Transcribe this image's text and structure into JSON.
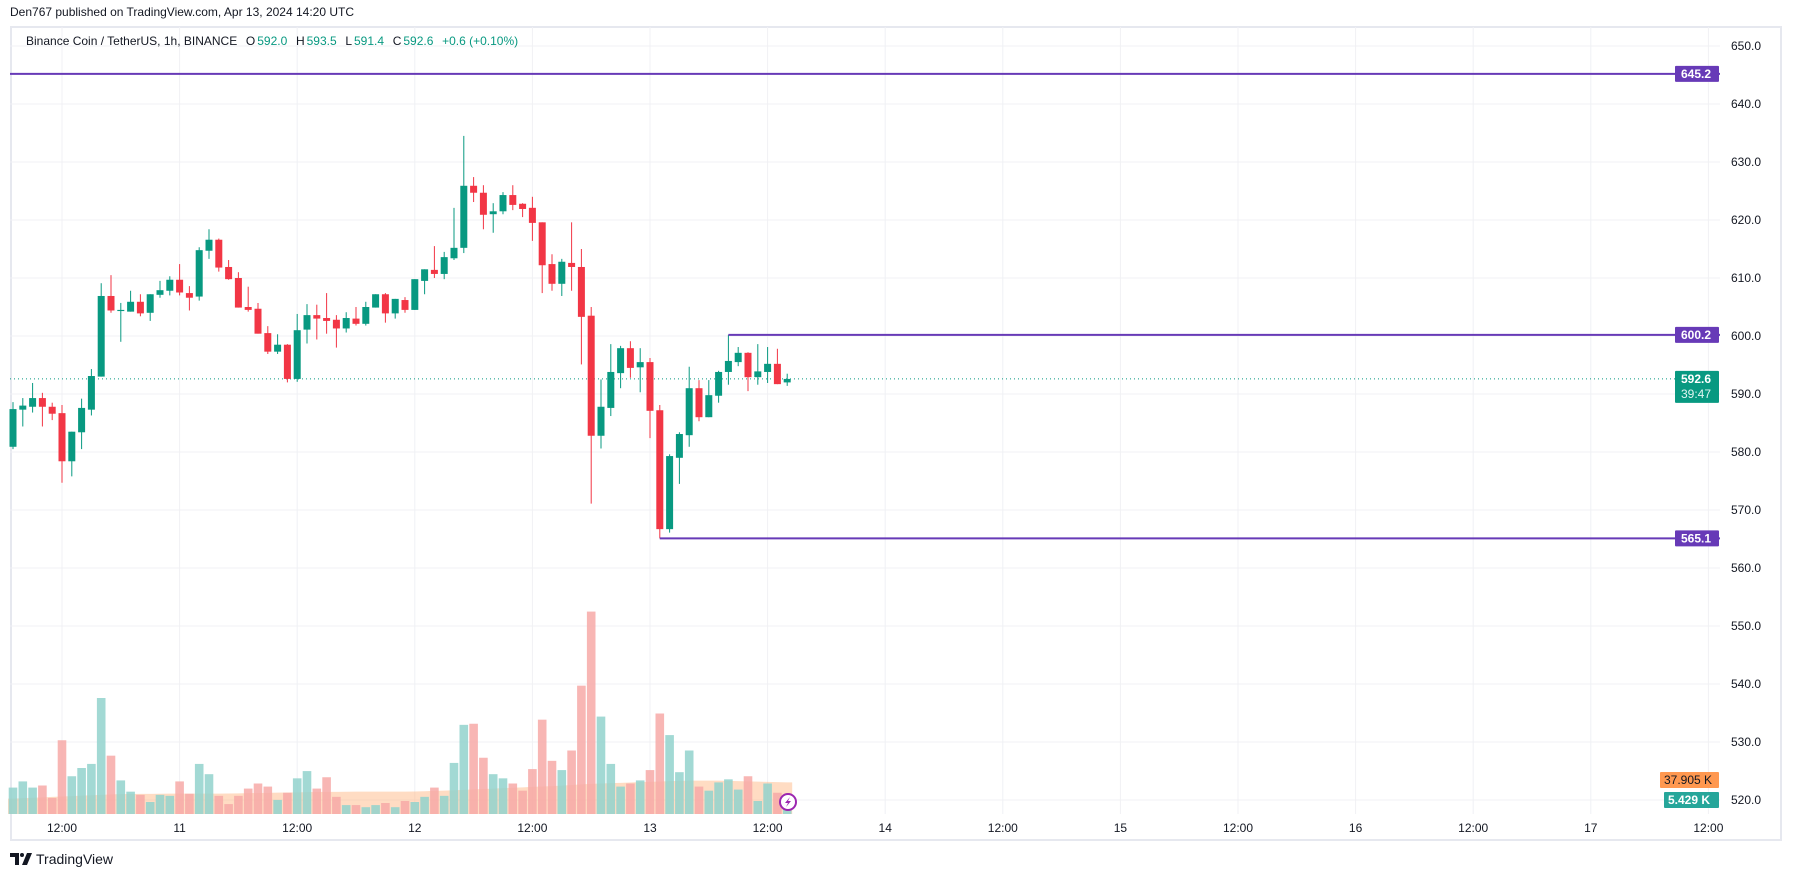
{
  "header": {
    "published": "Den767 published on TradingView.com, Apr 13, 2024 14:20 UTC"
  },
  "legend": {
    "symbol": "Binance Coin / TetherUS, 1h, BINANCE",
    "o_label": "O",
    "o": "592.0",
    "h_label": "H",
    "h": "593.5",
    "l_label": "L",
    "l": "591.4",
    "c_label": "C",
    "c": "592.6",
    "change": "+0.6 (+0.10%)"
  },
  "footer": {
    "brand": "TradingView"
  },
  "colors": {
    "up": "#089981",
    "down": "#F23645",
    "level": "#673AB7",
    "vol_ma": "#FF9850",
    "vol_up": "#92D2CC",
    "vol_down": "#F7A9A7"
  },
  "chart_data": {
    "type": "candlestick",
    "title": "Binance Coin / TetherUS, 1h, BINANCE",
    "first_candle_hour_offset": 7,
    "interval_hours": 1,
    "ylim": [
      518,
      652
    ],
    "price_ticks": [
      "650.0",
      "640.0",
      "630.0",
      "620.0",
      "610.0",
      "600.0",
      "590.0",
      "580.0",
      "570.0",
      "560.0",
      "550.0",
      "540.0",
      "530.0",
      "520.0"
    ],
    "time_ticks": [
      {
        "hour": 12,
        "label": "12:00"
      },
      {
        "hour": 24,
        "label": "11"
      },
      {
        "hour": 36,
        "label": "12:00"
      },
      {
        "hour": 48,
        "label": "12"
      },
      {
        "hour": 60,
        "label": "12:00"
      },
      {
        "hour": 72,
        "label": "13"
      },
      {
        "hour": 84,
        "label": "12:00"
      },
      {
        "hour": 96,
        "label": "14"
      },
      {
        "hour": 108,
        "label": "12:00"
      },
      {
        "hour": 120,
        "label": "15"
      },
      {
        "hour": 132,
        "label": "12:00"
      },
      {
        "hour": 144,
        "label": "16"
      },
      {
        "hour": 156,
        "label": "12:00"
      },
      {
        "hour": 168,
        "label": "17"
      },
      {
        "hour": 180,
        "label": "12:00"
      }
    ],
    "ohlc": [
      [
        580.9,
        588.6,
        580.5,
        587.4
      ],
      [
        587.3,
        589.3,
        584.4,
        588.0
      ],
      [
        587.8,
        591.9,
        586.8,
        589.3
      ],
      [
        589.3,
        590.2,
        584.4,
        587.8
      ],
      [
        587.8,
        588.5,
        585.5,
        586.6
      ],
      [
        586.7,
        588.1,
        574.7,
        578.4
      ],
      [
        578.4,
        583.5,
        575.8,
        583.5
      ],
      [
        583.4,
        589.2,
        580.5,
        587.6
      ],
      [
        587.3,
        594.3,
        586.3,
        593.1
      ],
      [
        593.0,
        609.1,
        593.0,
        606.9
      ],
      [
        606.9,
        610.5,
        604.0,
        604.4
      ],
      [
        604.3,
        605.7,
        599.0,
        604.5
      ],
      [
        604.2,
        607.8,
        604.2,
        605.9
      ],
      [
        605.9,
        607.2,
        603.4,
        603.9
      ],
      [
        604.0,
        607.2,
        602.6,
        607.2
      ],
      [
        607.1,
        609.5,
        606.6,
        607.9
      ],
      [
        607.8,
        610.3,
        607.0,
        609.7
      ],
      [
        609.7,
        612.4,
        607.0,
        607.5
      ],
      [
        607.4,
        608.6,
        604.4,
        606.6
      ],
      [
        606.8,
        615.3,
        606.1,
        614.8
      ],
      [
        614.7,
        618.4,
        613.3,
        616.6
      ],
      [
        616.6,
        616.8,
        611.1,
        611.8
      ],
      [
        611.9,
        613.1,
        609.7,
        609.8
      ],
      [
        610.0,
        611.0,
        604.9,
        604.9
      ],
      [
        605.0,
        608.5,
        604.2,
        604.5
      ],
      [
        604.7,
        605.7,
        600.4,
        600.4
      ],
      [
        600.5,
        601.7,
        596.9,
        597.3
      ],
      [
        597.3,
        600.3,
        596.9,
        598.5
      ],
      [
        598.5,
        598.6,
        592.0,
        592.6
      ],
      [
        592.6,
        603.8,
        592.1,
        601.0
      ],
      [
        601.1,
        605.5,
        598.7,
        603.6
      ],
      [
        603.6,
        605.4,
        599.4,
        603.0
      ],
      [
        603.1,
        607.4,
        600.4,
        602.6
      ],
      [
        602.8,
        603.6,
        598.0,
        601.3
      ],
      [
        601.3,
        604.1,
        600.6,
        603.1
      ],
      [
        603.0,
        605.0,
        601.8,
        602.1
      ],
      [
        602.1,
        605.9,
        601.8,
        605.0
      ],
      [
        604.9,
        607.2,
        604.9,
        607.2
      ],
      [
        607.2,
        607.4,
        602.3,
        603.9
      ],
      [
        603.9,
        606.4,
        603.0,
        606.4
      ],
      [
        606.2,
        606.7,
        604.0,
        604.5
      ],
      [
        604.5,
        609.8,
        604.5,
        609.8
      ],
      [
        609.5,
        611.5,
        607.2,
        611.5
      ],
      [
        611.4,
        615.5,
        610.0,
        610.7
      ],
      [
        610.7,
        614.5,
        609.8,
        613.6
      ],
      [
        613.4,
        622.1,
        613.1,
        615.2
      ],
      [
        615.2,
        634.5,
        614.3,
        625.9
      ],
      [
        625.9,
        627.4,
        623.1,
        624.7
      ],
      [
        624.7,
        626.0,
        618.4,
        620.9
      ],
      [
        621.0,
        622.9,
        617.8,
        621.5
      ],
      [
        621.5,
        624.8,
        621.0,
        624.3
      ],
      [
        624.3,
        626.0,
        621.7,
        622.6
      ],
      [
        622.8,
        622.9,
        620.5,
        621.9
      ],
      [
        622.1,
        624.0,
        616.4,
        619.5
      ],
      [
        619.6,
        619.6,
        607.4,
        612.2
      ],
      [
        612.4,
        614.1,
        607.8,
        609.0
      ],
      [
        609.0,
        613.3,
        606.9,
        612.8
      ],
      [
        612.6,
        619.6,
        607.8,
        611.9
      ],
      [
        611.9,
        615.0,
        595.1,
        603.3
      ],
      [
        603.5,
        605.0,
        571.1,
        582.8
      ],
      [
        582.8,
        592.5,
        580.6,
        587.8
      ],
      [
        587.6,
        598.6,
        586.2,
        593.8
      ],
      [
        593.6,
        598.3,
        591.0,
        597.9
      ],
      [
        597.9,
        599.1,
        592.8,
        594.5
      ],
      [
        594.6,
        597.9,
        590.3,
        595.5
      ],
      [
        595.5,
        596.2,
        582.4,
        587.1
      ],
      [
        587.2,
        588.1,
        565.1,
        566.7
      ],
      [
        566.7,
        579.6,
        566.1,
        579.3
      ],
      [
        579.0,
        583.4,
        574.5,
        583.1
      ],
      [
        582.9,
        594.7,
        580.9,
        591.0
      ],
      [
        591.0,
        592.4,
        585.3,
        586.0
      ],
      [
        586.0,
        592.4,
        586.0,
        589.8
      ],
      [
        589.7,
        594.0,
        588.5,
        593.8
      ],
      [
        593.8,
        600.2,
        591.6,
        595.7
      ],
      [
        595.5,
        598.1,
        594.8,
        597.1
      ],
      [
        597.1,
        597.2,
        590.5,
        592.9
      ],
      [
        592.9,
        598.6,
        591.6,
        593.9
      ],
      [
        593.8,
        598.1,
        591.9,
        595.2
      ],
      [
        595.2,
        597.8,
        591.7,
        591.7
      ],
      [
        592.0,
        593.5,
        591.4,
        592.6
      ]
    ],
    "volume_k": [
      31.7,
      39.1,
      31.7,
      34.2,
      19.3,
      88.5,
      45.3,
      55.2,
      60.1,
      139.2,
      70,
      40.3,
      26.8,
      23,
      14.4,
      23,
      21.8,
      39.1,
      24.3,
      60.1,
      47.8,
      21.8,
      11.9,
      21.8,
      30.5,
      36.6,
      32.9,
      16.9,
      25.5,
      42.8,
      51.5,
      30.5,
      44.1,
      20.6,
      10.7,
      10.7,
      8.2,
      10.7,
      13.2,
      8.2,
      15.6,
      14.4,
      20.6,
      31.7,
      21.8,
      61.3,
      107,
      108.3,
      67.5,
      47.8,
      42.8,
      36.6,
      28,
      53.9,
      113.2,
      63.8,
      52.7,
      76.2,
      154,
      242.9,
      116.9,
      60.1,
      32.9,
      36.6,
      40.3,
      52.7,
      120.6,
      94.7,
      50.2,
      76.2,
      32.9,
      28,
      37.9,
      41.6,
      29.3,
      45.3,
      15.6,
      36.6,
      25.5,
      5.4
    ],
    "volume_ma_k": [
      18.5,
      19,
      19.5,
      20,
      20.5,
      21,
      21.5,
      22,
      22.5,
      23,
      23.5,
      23.8,
      24,
      24.1,
      24.2,
      24.3,
      24.4,
      24.4,
      24.4,
      24.4,
      24.4,
      24.5,
      24.6,
      24.8,
      25,
      25.2,
      25.4,
      25.6,
      25.8,
      26,
      26.2,
      26.4,
      26.5,
      26.6,
      26.7,
      26.8,
      26.8,
      26.8,
      26.8,
      26.8,
      26.8,
      27,
      27.3,
      27.7,
      28.1,
      28.5,
      29,
      29.5,
      30,
      30.5,
      31,
      31.5,
      32,
      32.5,
      33,
      33.5,
      34,
      34.8,
      35.6,
      36.2,
      36.6,
      37,
      37.4,
      37.8,
      38.2,
      38.6,
      39,
      39.4,
      39.8,
      40,
      40.1,
      40.1,
      40,
      39.8,
      39.5,
      39.2,
      38.9,
      38.5,
      38.2,
      37.9
    ],
    "levels": [
      {
        "price": 645.2,
        "label": "645.2",
        "from_index": -1
      },
      {
        "price": 600.2,
        "label": "600.2",
        "from_index": 73
      },
      {
        "price": 565.1,
        "label": "565.1",
        "from_index": 66
      }
    ],
    "last_price": {
      "price": 592.6,
      "label": "592.6",
      "countdown": "39:47"
    },
    "volume_labels": {
      "ma": "37.905 K",
      "current": "5.429 K"
    }
  }
}
